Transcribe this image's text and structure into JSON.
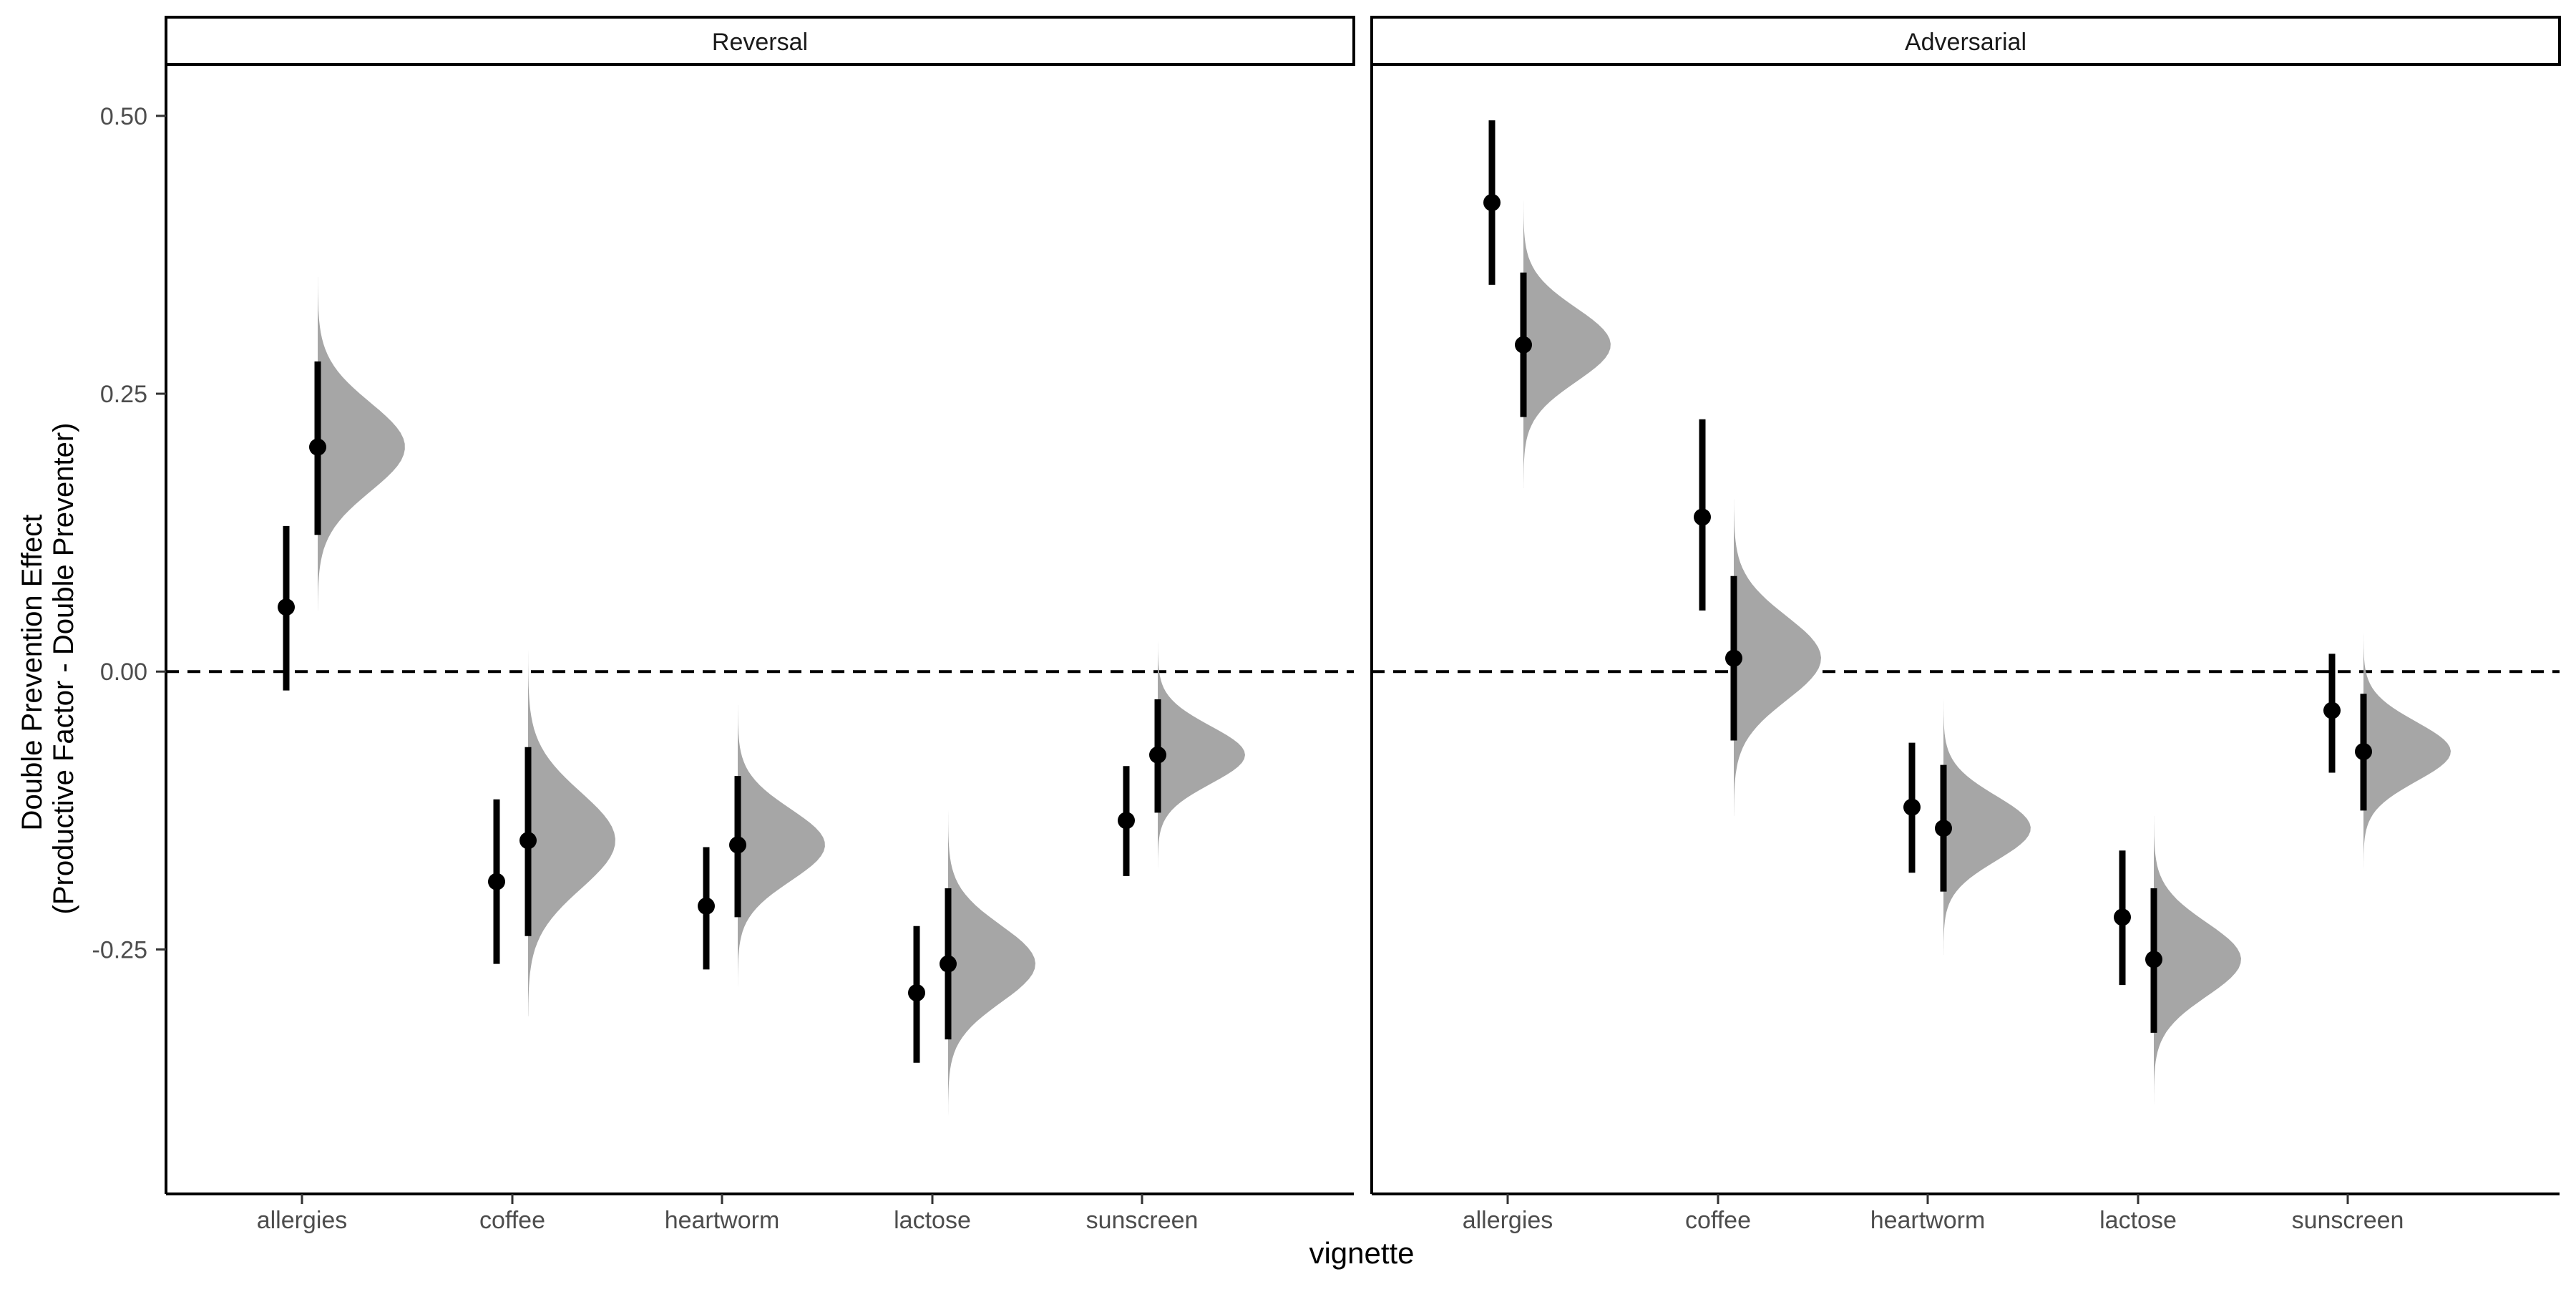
{
  "chart_data": {
    "type": "interval",
    "ylabel_lines": [
      "Double Prevention Effect",
      "(Productive Factor - Double Preventer)"
    ],
    "xlabel": "vignette",
    "y_ticks": [
      0.5,
      0.25,
      0.0,
      -0.25
    ],
    "y_tick_labels": [
      "0.50",
      "0.25",
      "0.00",
      "-0.25"
    ],
    "ylim": [
      -0.47,
      0.545
    ],
    "categories": [
      "allergies",
      "coffee",
      "heartworm",
      "lactose",
      "sunscreen"
    ],
    "reference_line": {
      "y": 0,
      "style": "dashed"
    },
    "colors": {
      "density": "#a6a6a6",
      "interval": "#000000"
    },
    "panels": [
      {
        "strip_label": "Reversal",
        "observed": [
          {
            "category": "allergies",
            "estimate": 0.058,
            "lower": -0.017,
            "upper": 0.131
          },
          {
            "category": "coffee",
            "estimate": -0.189,
            "lower": -0.263,
            "upper": -0.115
          },
          {
            "category": "heartworm",
            "estimate": -0.211,
            "lower": -0.268,
            "upper": -0.158
          },
          {
            "category": "lactose",
            "estimate": -0.289,
            "lower": -0.352,
            "upper": -0.229
          },
          {
            "category": "sunscreen",
            "estimate": -0.134,
            "lower": -0.184,
            "upper": -0.085
          }
        ],
        "posterior": [
          {
            "category": "allergies",
            "mean": 0.202,
            "lower": 0.123,
            "upper": 0.279,
            "dist_min": 0.055,
            "dist_max": 0.355
          },
          {
            "category": "coffee",
            "mean": -0.152,
            "lower": -0.238,
            "upper": -0.068,
            "dist_min": -0.31,
            "dist_max": 0.02
          },
          {
            "category": "heartworm",
            "mean": -0.156,
            "lower": -0.221,
            "upper": -0.094,
            "dist_min": -0.285,
            "dist_max": -0.03
          },
          {
            "category": "lactose",
            "mean": -0.263,
            "lower": -0.331,
            "upper": -0.195,
            "dist_min": -0.405,
            "dist_max": -0.12
          },
          {
            "category": "sunscreen",
            "mean": -0.075,
            "lower": -0.127,
            "upper": -0.025,
            "dist_min": -0.178,
            "dist_max": 0.035
          }
        ]
      },
      {
        "strip_label": "Adversarial",
        "observed": [
          {
            "category": "allergies",
            "estimate": 0.422,
            "lower": 0.348,
            "upper": 0.496
          },
          {
            "category": "coffee",
            "estimate": 0.139,
            "lower": 0.055,
            "upper": 0.227
          },
          {
            "category": "heartworm",
            "estimate": -0.122,
            "lower": -0.181,
            "upper": -0.064
          },
          {
            "category": "lactose",
            "estimate": -0.221,
            "lower": -0.282,
            "upper": -0.161
          },
          {
            "category": "sunscreen",
            "estimate": -0.035,
            "lower": -0.091,
            "upper": 0.016
          }
        ],
        "posterior": [
          {
            "category": "allergies",
            "mean": 0.294,
            "lower": 0.229,
            "upper": 0.359,
            "dist_min": 0.165,
            "dist_max": 0.425
          },
          {
            "category": "coffee",
            "mean": 0.012,
            "lower": -0.062,
            "upper": 0.086,
            "dist_min": -0.13,
            "dist_max": 0.155
          },
          {
            "category": "heartworm",
            "mean": -0.141,
            "lower": -0.198,
            "upper": -0.084,
            "dist_min": -0.255,
            "dist_max": -0.025
          },
          {
            "category": "lactose",
            "mean": -0.259,
            "lower": -0.325,
            "upper": -0.195,
            "dist_min": -0.395,
            "dist_max": -0.13
          },
          {
            "category": "sunscreen",
            "mean": -0.072,
            "lower": -0.125,
            "upper": -0.02,
            "dist_min": -0.178,
            "dist_max": 0.035
          }
        ]
      }
    ]
  }
}
